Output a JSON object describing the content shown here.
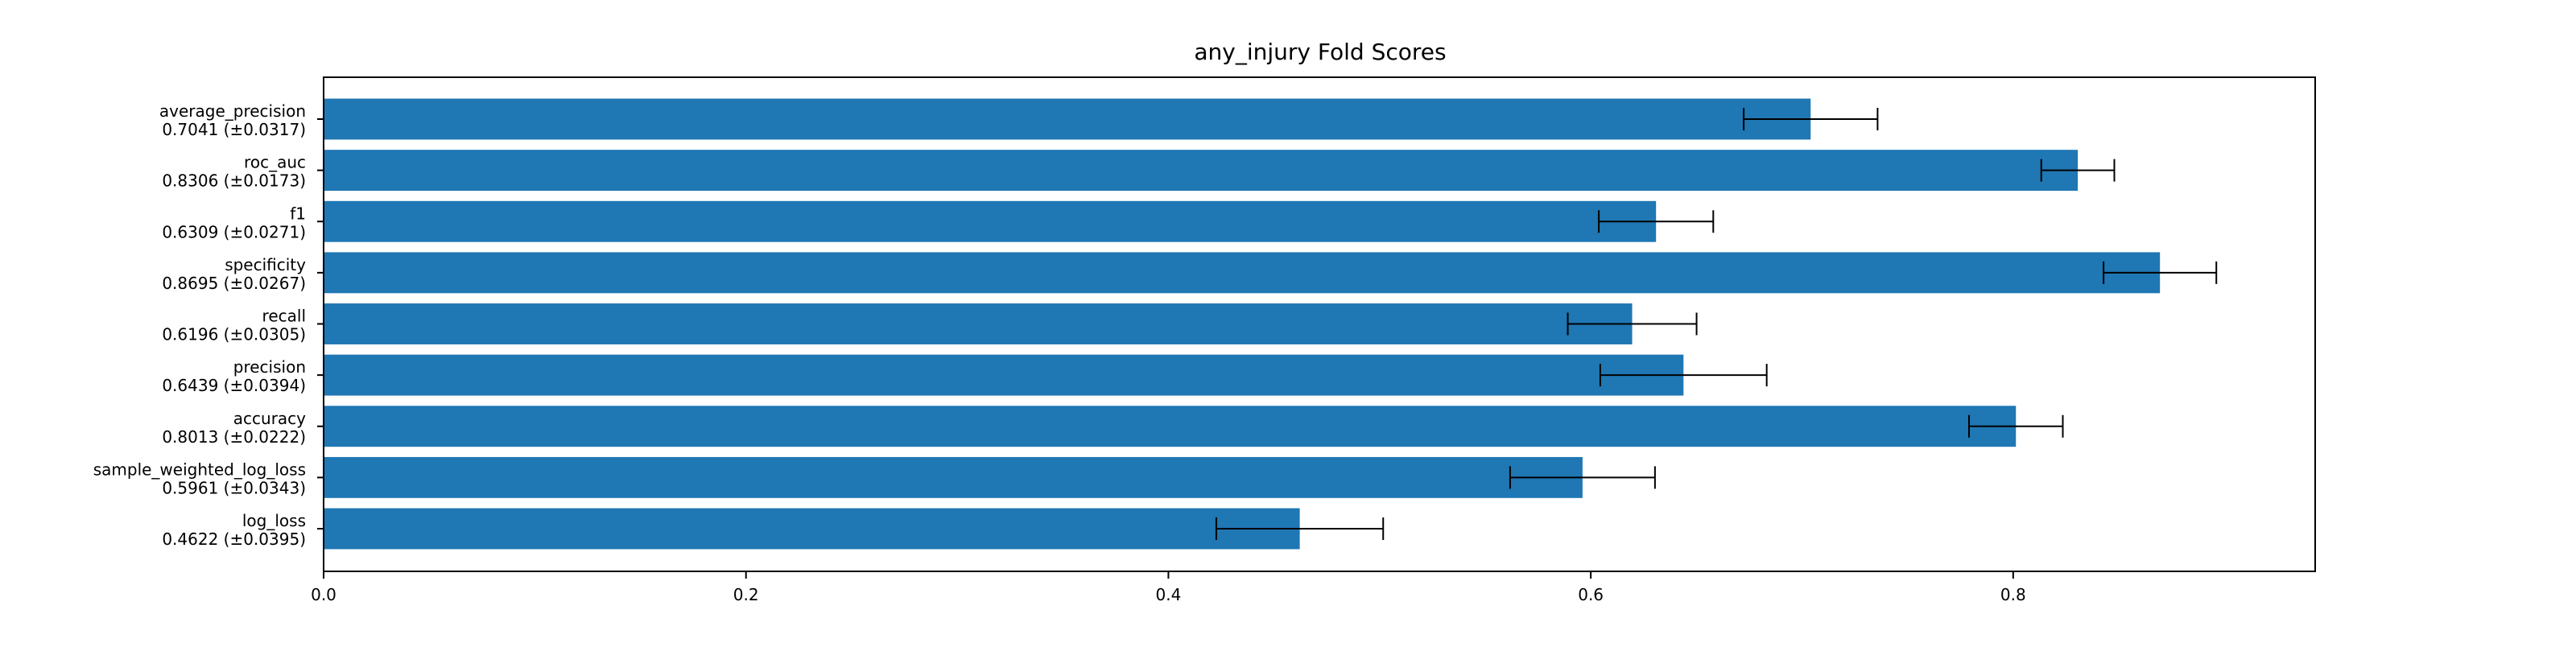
{
  "chart_data": {
    "type": "bar",
    "orientation": "horizontal",
    "title": "any_injury Fold Scores",
    "xlabel": "",
    "ylabel": "",
    "xlim": [
      0,
      0.943
    ],
    "grid": false,
    "bar_color": "#1f77b4",
    "errorbar_color": "#000000",
    "x_ticks": [
      "0.0",
      "0.2",
      "0.4",
      "0.6",
      "0.8"
    ],
    "x_tick_values": [
      0.0,
      0.2,
      0.4,
      0.6,
      0.8
    ],
    "bars": [
      {
        "metric": "average_precision",
        "summary": "0.7041 (±0.0317)",
        "value": 0.7041,
        "error": 0.0317
      },
      {
        "metric": "roc_auc",
        "summary": "0.8306 (±0.0173)",
        "value": 0.8306,
        "error": 0.0173
      },
      {
        "metric": "f1",
        "summary": "0.6309 (±0.0271)",
        "value": 0.6309,
        "error": 0.0271
      },
      {
        "metric": "specificity",
        "summary": "0.8695 (±0.0267)",
        "value": 0.8695,
        "error": 0.0267
      },
      {
        "metric": "recall",
        "summary": "0.6196 (±0.0305)",
        "value": 0.6196,
        "error": 0.0305
      },
      {
        "metric": "precision",
        "summary": "0.6439 (±0.0394)",
        "value": 0.6439,
        "error": 0.0394
      },
      {
        "metric": "accuracy",
        "summary": "0.8013 (±0.0222)",
        "value": 0.8013,
        "error": 0.0222
      },
      {
        "metric": "sample_weighted_log_loss",
        "summary": "0.5961 (±0.0343)",
        "value": 0.5961,
        "error": 0.0343
      },
      {
        "metric": "log_loss",
        "summary": "0.4622 (±0.0395)",
        "value": 0.4622,
        "error": 0.0395
      }
    ]
  }
}
